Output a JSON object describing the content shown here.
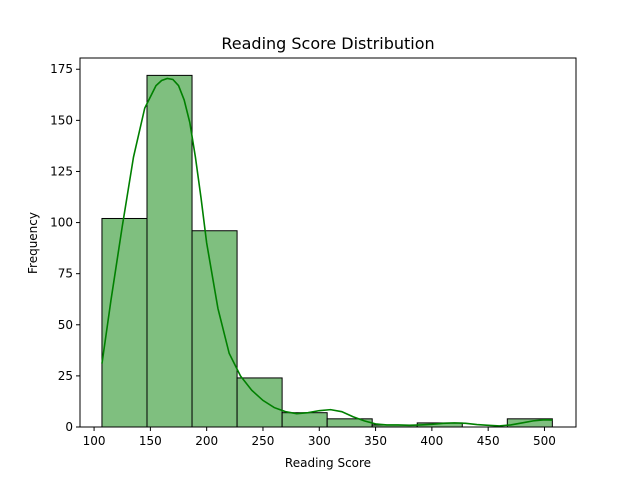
{
  "chart_data": {
    "type": "bar",
    "title": "Reading Score Distribution",
    "xlabel": "Reading Score",
    "ylabel": "Frequency",
    "xlim": [
      87.5,
      528
    ],
    "ylim": [
      0,
      180.5
    ],
    "xticks": [
      100,
      150,
      200,
      250,
      300,
      350,
      400,
      450,
      500
    ],
    "yticks": [
      0,
      25,
      50,
      75,
      100,
      125,
      150,
      175
    ],
    "bins": [
      {
        "start": 107,
        "end": 147,
        "count": 102
      },
      {
        "start": 147,
        "end": 187,
        "count": 172
      },
      {
        "start": 187,
        "end": 227,
        "count": 96
      },
      {
        "start": 227,
        "end": 267,
        "count": 24
      },
      {
        "start": 267,
        "end": 307,
        "count": 7
      },
      {
        "start": 307,
        "end": 347,
        "count": 4
      },
      {
        "start": 347,
        "end": 387,
        "count": 1
      },
      {
        "start": 387,
        "end": 427,
        "count": 2
      },
      {
        "start": 427,
        "end": 467,
        "count": 0
      },
      {
        "start": 467,
        "end": 507,
        "count": 4
      }
    ],
    "kde": {
      "x": [
        107,
        115,
        125,
        135,
        145,
        155,
        160,
        165,
        170,
        175,
        180,
        185,
        190,
        195,
        200,
        210,
        220,
        230,
        240,
        250,
        260,
        270,
        280,
        290,
        300,
        310,
        320,
        330,
        340,
        350,
        360,
        370,
        380,
        390,
        400,
        410,
        420,
        430,
        440,
        450,
        460,
        470,
        480,
        490,
        500,
        507
      ],
      "y": [
        31,
        62,
        98,
        132,
        156,
        167,
        169.5,
        170.5,
        170,
        167,
        160,
        149,
        132,
        112,
        90,
        58,
        36,
        25,
        18,
        13,
        9.5,
        7.5,
        6.5,
        7,
        8,
        8.5,
        7.5,
        5,
        3,
        1.5,
        1,
        1,
        0.8,
        1,
        1.3,
        1.8,
        2,
        1.8,
        1.2,
        0.8,
        0.5,
        1,
        2,
        3,
        3.5,
        3.4
      ]
    },
    "grid": false,
    "colors": {
      "bar_fill": "#7fbf7f",
      "bar_edge": "#000000",
      "kde_line": "#008000"
    }
  }
}
